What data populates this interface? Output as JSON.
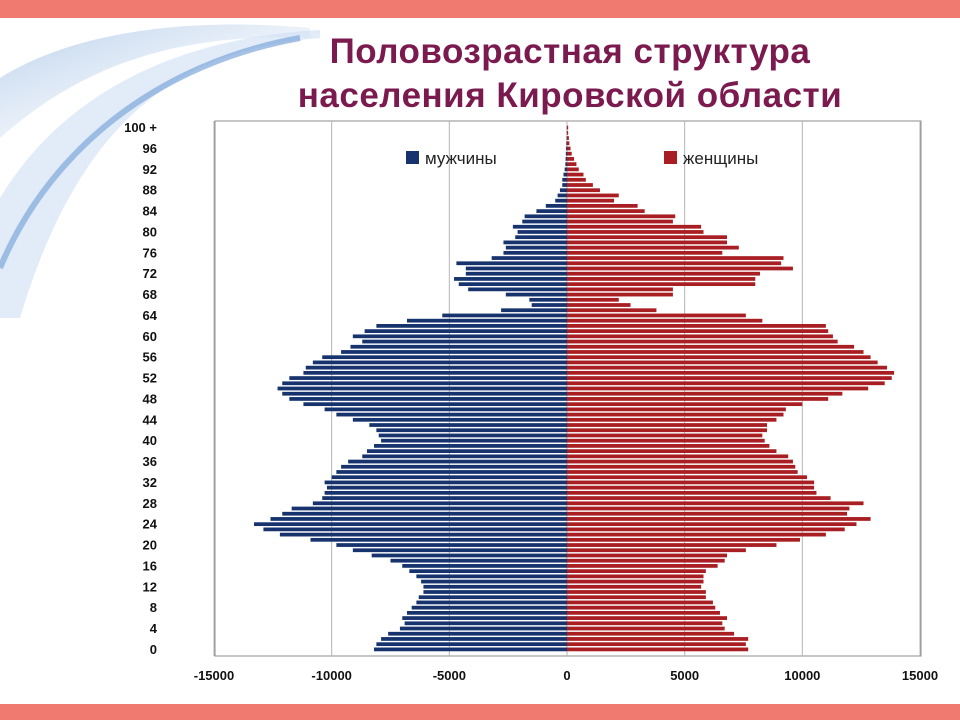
{
  "title": "Половозрастная структура населения Кировской области",
  "title_lines": [
    "Половозрастная  структура",
    "населения Кировской области"
  ],
  "colors": {
    "male": "#16336e",
    "female": "#a81e22",
    "accent": "#f07a70",
    "title": "#7a1a4e"
  },
  "chart_data": {
    "type": "bar",
    "orientation": "horizontal",
    "title": "Половозрастная структура населения Кировской области",
    "xlim": [
      -15000,
      15000
    ],
    "xticks": [
      -15000,
      -10000,
      -5000,
      0,
      5000,
      10000,
      15000
    ],
    "grid": true,
    "legend_position": "top",
    "age_tick_labels": [
      "100 +",
      "96",
      "92",
      "88",
      "84",
      "80",
      "76",
      "72",
      "68",
      "64",
      "60",
      "56",
      "52",
      "48",
      "44",
      "40",
      "36",
      "32",
      "28",
      "24",
      "20",
      "16",
      "12",
      "8",
      "4",
      "0"
    ],
    "categories": [
      "0",
      "1",
      "2",
      "3",
      "4",
      "5",
      "6",
      "7",
      "8",
      "9",
      "10",
      "11",
      "12",
      "13",
      "14",
      "15",
      "16",
      "17",
      "18",
      "19",
      "20",
      "21",
      "22",
      "23",
      "24",
      "25",
      "26",
      "27",
      "28",
      "29",
      "30",
      "31",
      "32",
      "33",
      "34",
      "35",
      "36",
      "37",
      "38",
      "39",
      "40",
      "41",
      "42",
      "43",
      "44",
      "45",
      "46",
      "47",
      "48",
      "49",
      "50",
      "51",
      "52",
      "53",
      "54",
      "55",
      "56",
      "57",
      "58",
      "59",
      "60",
      "61",
      "62",
      "63",
      "64",
      "65",
      "66",
      "67",
      "68",
      "69",
      "70",
      "71",
      "72",
      "73",
      "74",
      "75",
      "76",
      "77",
      "78",
      "79",
      "80",
      "81",
      "82",
      "83",
      "84",
      "85",
      "86",
      "87",
      "88",
      "89",
      "90",
      "91",
      "92",
      "93",
      "94",
      "95",
      "96",
      "97",
      "98",
      "99",
      "100 +"
    ],
    "series": [
      {
        "name": "мужчины",
        "values": [
          -8200,
          -8100,
          -7900,
          -7600,
          -7100,
          -6900,
          -7000,
          -6800,
          -6600,
          -6400,
          -6300,
          -6100,
          -6100,
          -6200,
          -6400,
          -6700,
          -7000,
          -7500,
          -8300,
          -9100,
          -9800,
          -10900,
          -12200,
          -12900,
          -13300,
          -12600,
          -12100,
          -11700,
          -10800,
          -10400,
          -10300,
          -10200,
          -10300,
          -10000,
          -9800,
          -9600,
          -9300,
          -8700,
          -8500,
          -8200,
          -7900,
          -8000,
          -8100,
          -8400,
          -9100,
          -9800,
          -10300,
          -11200,
          -11800,
          -12100,
          -12300,
          -12100,
          -11800,
          -11200,
          -11100,
          -10800,
          -10400,
          -9600,
          -9200,
          -8700,
          -9100,
          -8600,
          -8100,
          -6800,
          -5300,
          -2800,
          -1500,
          -1600,
          -2600,
          -4200,
          -4600,
          -4800,
          -4300,
          -4300,
          -4700,
          -3200,
          -2700,
          -2600,
          -2700,
          -2200,
          -2100,
          -2300,
          -1900,
          -1800,
          -1300,
          -900,
          -500,
          -400,
          -300,
          -200,
          -200,
          -150,
          -100,
          -70,
          -60,
          -50,
          -40,
          -30,
          -20,
          -10,
          -10
        ]
      },
      {
        "name": "женщины",
        "values": [
          7700,
          7600,
          7700,
          7100,
          6700,
          6600,
          6800,
          6500,
          6300,
          6200,
          5900,
          5900,
          5700,
          5800,
          5800,
          5900,
          6400,
          6700,
          6800,
          7600,
          8900,
          9900,
          11000,
          11800,
          12300,
          12900,
          11900,
          12000,
          12600,
          11200,
          10600,
          10500,
          10500,
          10200,
          9800,
          9700,
          9600,
          9400,
          8900,
          8600,
          8400,
          8300,
          8500,
          8500,
          8900,
          9200,
          9300,
          10000,
          11100,
          11700,
          12800,
          13500,
          13800,
          13900,
          13600,
          13200,
          12900,
          12600,
          12200,
          11500,
          11300,
          11100,
          11000,
          8300,
          7600,
          3800,
          2700,
          2200,
          4500,
          4500,
          8000,
          8000,
          8200,
          9600,
          9100,
          9200,
          6600,
          7300,
          6800,
          6800,
          5800,
          5700,
          4500,
          4600,
          3300,
          3000,
          2000,
          2200,
          1400,
          1100,
          800,
          700,
          500,
          400,
          300,
          200,
          150,
          100,
          80,
          50,
          50
        ]
      }
    ]
  }
}
